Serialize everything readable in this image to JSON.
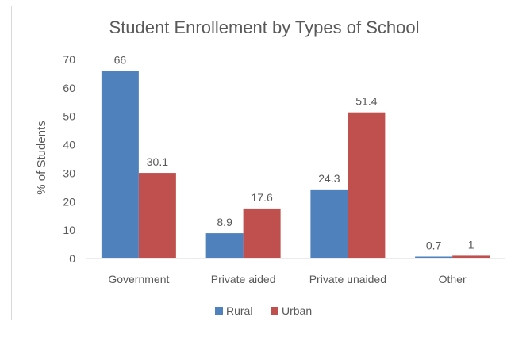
{
  "chart_data": {
    "type": "bar",
    "title": "Student Enrollement by Types of School",
    "xlabel": "",
    "ylabel": "% of Students",
    "categories": [
      "Government",
      "Private aided",
      "Private unaided",
      "Other"
    ],
    "series": [
      {
        "name": "Rural",
        "values": [
          66,
          8.9,
          24.3,
          0.7
        ],
        "color": "#4f81bd"
      },
      {
        "name": "Urban",
        "values": [
          30.1,
          17.6,
          51.4,
          1
        ],
        "color": "#c0504d"
      }
    ],
    "ylim": [
      0,
      70
    ],
    "yticks": [
      "0",
      "10",
      "20",
      "30",
      "40",
      "50",
      "60",
      "70"
    ],
    "data_labels": [
      [
        "66",
        "8.9",
        "24.3",
        "0.7"
      ],
      [
        "30.1",
        "17.6",
        "51.4",
        "1"
      ]
    ],
    "grid": false,
    "legend_position": "bottom"
  }
}
